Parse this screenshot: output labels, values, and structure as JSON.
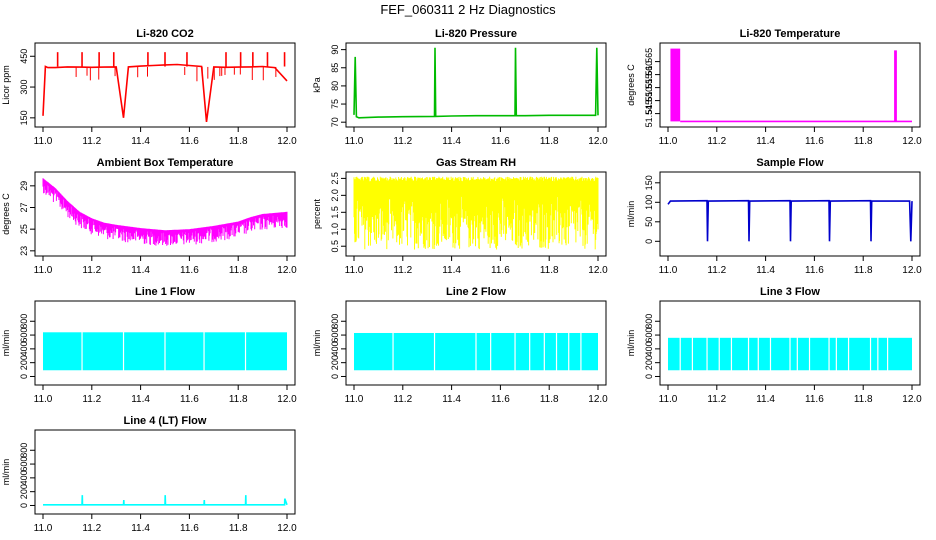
{
  "page": {
    "title": "FEF_060311  2 Hz Diagnostics"
  },
  "chart_data": [
    {
      "type": "line",
      "title": "Li-820 CO2",
      "ylabel": "Licor ppm",
      "xlim": [
        11.0,
        12.0
      ],
      "ylim": [
        120,
        500
      ],
      "xticks": [
        11.0,
        11.2,
        11.4,
        11.6,
        11.8,
        12.0
      ],
      "yticks": [
        150,
        300,
        450
      ],
      "ytick_labels": [
        "150",
        "300",
        "450"
      ],
      "color": "#ff0000",
      "series": [
        {
          "x": [
            11.0,
            11.01,
            11.02,
            11.05,
            11.1,
            11.15,
            11.2,
            11.25,
            11.3,
            11.33,
            11.35,
            11.4,
            11.45,
            11.5,
            11.55,
            11.6,
            11.65,
            11.67,
            11.7,
            11.75,
            11.8,
            11.85,
            11.9,
            11.95,
            12.0
          ],
          "y": [
            160,
            400,
            395,
            395,
            398,
            397,
            396,
            397,
            398,
            150,
            398,
            402,
            405,
            408,
            410,
            405,
            400,
            130,
            398,
            396,
            397,
            398,
            400,
            395,
            330
          ]
        }
      ],
      "spikes": [
        {
          "x": 11.06,
          "y": 470
        },
        {
          "x": 11.16,
          "y": 470
        },
        {
          "x": 11.23,
          "y": 470
        },
        {
          "x": 11.29,
          "y": 470
        },
        {
          "x": 11.43,
          "y": 470
        },
        {
          "x": 11.5,
          "y": 470
        },
        {
          "x": 11.59,
          "y": 470
        },
        {
          "x": 11.75,
          "y": 470
        },
        {
          "x": 11.81,
          "y": 470
        },
        {
          "x": 11.86,
          "y": 470
        },
        {
          "x": 11.92,
          "y": 470
        },
        {
          "x": 11.99,
          "y": 470
        }
      ]
    },
    {
      "type": "line",
      "title": "Li-820 Pressure",
      "ylabel": "kPa",
      "xlim": [
        11.0,
        12.0
      ],
      "ylim": [
        69.5,
        91
      ],
      "xticks": [
        11.0,
        11.2,
        11.4,
        11.6,
        11.8,
        12.0
      ],
      "yticks": [
        70,
        75,
        80,
        85,
        90
      ],
      "ytick_labels": [
        "70",
        "75",
        "80",
        "85",
        "90"
      ],
      "color": "#00bb00",
      "series": [
        {
          "x": [
            11.0,
            11.005,
            11.01,
            11.02,
            11.1,
            11.2,
            11.33,
            11.332,
            11.335,
            11.4,
            11.5,
            11.66,
            11.662,
            11.665,
            11.7,
            11.8,
            11.9,
            11.99,
            11.995,
            12.0
          ],
          "y": [
            72,
            88,
            71.5,
            71.2,
            71.4,
            71.5,
            71.6,
            90.5,
            71.6,
            71.7,
            71.8,
            71.8,
            90.5,
            71.8,
            71.8,
            71.9,
            71.9,
            71.9,
            90.5,
            71.9
          ]
        }
      ]
    },
    {
      "type": "line",
      "title": "Li-820 Temperature",
      "ylabel": "degrees C",
      "xlim": [
        11.0,
        12.0
      ],
      "ylim": [
        51.541,
        51.571
      ],
      "xticks": [
        11.0,
        11.2,
        11.4,
        11.6,
        11.8,
        12.0
      ],
      "yticks": [
        51.545,
        51.55,
        51.555,
        51.56,
        51.565
      ],
      "ytick_labels": [
        "51.545",
        "51.550",
        "51.555",
        "51.560",
        "51.565"
      ],
      "color": "#ff00ff",
      "band": {
        "x0": 11.01,
        "x1": 11.05,
        "y0": 51.542,
        "y1": 51.57
      },
      "series": [
        {
          "x": [
            11.05,
            11.93,
            11.93,
            11.935,
            11.935,
            12.0
          ],
          "y": [
            51.542,
            51.542,
            51.569,
            51.569,
            51.542,
            51.542
          ]
        }
      ]
    },
    {
      "type": "line",
      "title": "Ambient Box Temperature",
      "ylabel": "degrees C",
      "xlim": [
        11.0,
        12.0
      ],
      "ylim": [
        22.8,
        30.0
      ],
      "xticks": [
        11.0,
        11.2,
        11.4,
        11.6,
        11.8,
        12.0
      ],
      "yticks": [
        23,
        25,
        27,
        29
      ],
      "ytick_labels": [
        "23",
        "25",
        "27",
        "29"
      ],
      "color": "#ff00ff",
      "series": [
        {
          "x": [
            11.0,
            11.05,
            11.1,
            11.15,
            11.2,
            11.25,
            11.3,
            11.4,
            11.5,
            11.6,
            11.7,
            11.8,
            11.85,
            11.9,
            11.95,
            12.0
          ],
          "y": [
            29.5,
            28.6,
            27.4,
            26.4,
            25.8,
            25.4,
            25.2,
            24.9,
            24.7,
            24.8,
            25.1,
            25.5,
            25.9,
            26.2,
            26.3,
            26.4
          ],
          "noise_down": 1.3
        }
      ]
    },
    {
      "type": "line",
      "title": "Gas Stream RH",
      "ylabel": "percent",
      "xlim": [
        11.0,
        12.0
      ],
      "ylim": [
        0.3,
        2.6
      ],
      "xticks": [
        11.0,
        11.2,
        11.4,
        11.6,
        11.8,
        12.0
      ],
      "yticks": [
        0.5,
        1.0,
        1.5,
        2.0,
        2.5
      ],
      "ytick_labels": [
        "0.5",
        "1.0",
        "1.5",
        "2.0",
        "2.5"
      ],
      "color": "#ffff00",
      "series": [
        {
          "x": [
            11.0,
            12.0
          ],
          "y": [
            2.0,
            2.0
          ],
          "band_low": 0.4,
          "band_high": 2.55
        }
      ]
    },
    {
      "type": "line",
      "title": "Sample Flow",
      "ylabel": "ml/min",
      "xlim": [
        11.0,
        12.0
      ],
      "ylim": [
        -30,
        170
      ],
      "xticks": [
        11.0,
        11.2,
        11.4,
        11.6,
        11.8,
        12.0
      ],
      "yticks": [
        0,
        50,
        100,
        150
      ],
      "ytick_labels": [
        "0",
        "50",
        "100",
        "150"
      ],
      "color": "#0000cc",
      "series": [
        {
          "x": [
            11.0,
            11.01,
            11.16,
            11.162,
            11.165,
            11.33,
            11.332,
            11.335,
            11.5,
            11.502,
            11.505,
            11.66,
            11.662,
            11.665,
            11.83,
            11.832,
            11.835,
            11.99,
            11.995,
            12.0
          ],
          "y": [
            95,
            103,
            104,
            0,
            103,
            104,
            0,
            103,
            104,
            0,
            103,
            104,
            0,
            103,
            104,
            0,
            103,
            103,
            0,
            103
          ]
        }
      ]
    },
    {
      "type": "area",
      "title": "Line 1 Flow",
      "ylabel": "ml/min",
      "xlim": [
        11.0,
        12.0
      ],
      "ylim": [
        -80,
        1050
      ],
      "xticks": [
        11.0,
        11.2,
        11.4,
        11.6,
        11.8,
        12.0
      ],
      "yticks": [
        0,
        200,
        400,
        600,
        800
      ],
      "ytick_labels": [
        "0",
        "200",
        "400",
        "600",
        "800"
      ],
      "color": "#00ffff",
      "series": [
        {
          "low": 90,
          "high": 640,
          "gaps": [
            11.16,
            11.33,
            11.5,
            11.66,
            11.83
          ]
        }
      ]
    },
    {
      "type": "area",
      "title": "Line 2 Flow",
      "ylabel": "ml/min",
      "xlim": [
        11.0,
        12.0
      ],
      "ylim": [
        -80,
        1050
      ],
      "xticks": [
        11.0,
        11.2,
        11.4,
        11.6,
        11.8,
        12.0
      ],
      "yticks": [
        0,
        200,
        400,
        600,
        800
      ],
      "ytick_labels": [
        "0",
        "200",
        "400",
        "600",
        "800"
      ],
      "color": "#00ffff",
      "series": [
        {
          "low": 90,
          "high": 630,
          "gaps": [
            11.16,
            11.33,
            11.5,
            11.66,
            11.83,
            11.88,
            11.93,
            11.72,
            11.78,
            11.56
          ]
        }
      ]
    },
    {
      "type": "area",
      "title": "Line 3 Flow",
      "ylabel": "ml/min",
      "xlim": [
        11.0,
        12.0
      ],
      "ylim": [
        -80,
        1050
      ],
      "xticks": [
        11.0,
        11.2,
        11.4,
        11.6,
        11.8,
        12.0
      ],
      "yticks": [
        0,
        200,
        400,
        600,
        800
      ],
      "ytick_labels": [
        "0",
        "200",
        "400",
        "600",
        "800"
      ],
      "color": "#00ffff",
      "series": [
        {
          "low": 90,
          "high": 560,
          "gaps": [
            11.16,
            11.33,
            11.5,
            11.66,
            11.83,
            11.1,
            11.26,
            11.42,
            11.58,
            11.74,
            11.9,
            11.05,
            11.21,
            11.37,
            11.53,
            11.69,
            11.86
          ]
        }
      ]
    },
    {
      "type": "line",
      "title": "Line 4 (LT) Flow",
      "ylabel": "ml/min",
      "xlim": [
        11.0,
        12.0
      ],
      "ylim": [
        -80,
        1050
      ],
      "xticks": [
        11.0,
        11.2,
        11.4,
        11.6,
        11.8,
        12.0
      ],
      "yticks": [
        0,
        200,
        400,
        600,
        800
      ],
      "ytick_labels": [
        "0",
        "200",
        "400",
        "600",
        "800"
      ],
      "color": "#00ffff",
      "series": [
        {
          "x": [
            11.0,
            11.16,
            11.161,
            11.162,
            11.33,
            11.331,
            11.332,
            11.5,
            11.501,
            11.502,
            11.66,
            11.661,
            11.662,
            11.83,
            11.831,
            11.832,
            11.99,
            11.991,
            12.0
          ],
          "y": [
            10,
            10,
            150,
            10,
            10,
            80,
            10,
            10,
            150,
            10,
            10,
            80,
            10,
            10,
            150,
            10,
            10,
            100,
            10
          ]
        }
      ]
    }
  ]
}
